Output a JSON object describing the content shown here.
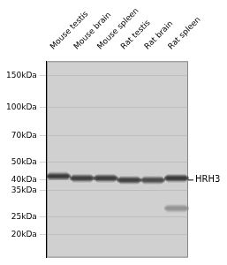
{
  "chart_data": {
    "type": "scatter",
    "categories": [
      "Mouse testis",
      "Mouse brain",
      "Mouse spleen",
      "Rat testis",
      "Rat brain",
      "Rat spleen"
    ],
    "series": [
      {
        "values": [
          42,
          41,
          41,
          40,
          40,
          41
        ],
        "colors": [
          "#1a1a1a",
          "#222222",
          "#1e1e1e",
          "#252525",
          "#333333",
          "#1a1a1a"
        ]
      },
      {
        "values": [
          null,
          null,
          null,
          null,
          null,
          28
        ],
        "colors": [
          null,
          null,
          null,
          null,
          null,
          "#888888"
        ]
      }
    ],
    "log": "y",
    "ylim": [
      15,
      180
    ],
    "yticks": [
      {
        "value": 150,
        "label": "150kDa"
      },
      {
        "value": 100,
        "label": "100kDa"
      },
      {
        "value": 70,
        "label": "70kDa"
      },
      {
        "value": 50,
        "label": "50kDa"
      },
      {
        "value": 40,
        "label": "40kDa"
      },
      {
        "value": 35,
        "label": "35kDa"
      },
      {
        "value": 25,
        "label": "25kDa"
      },
      {
        "value": 20,
        "label": "20kDa"
      }
    ],
    "grid": true,
    "annotations": [
      {
        "text": "HRH3",
        "y": 40
      }
    ]
  }
}
